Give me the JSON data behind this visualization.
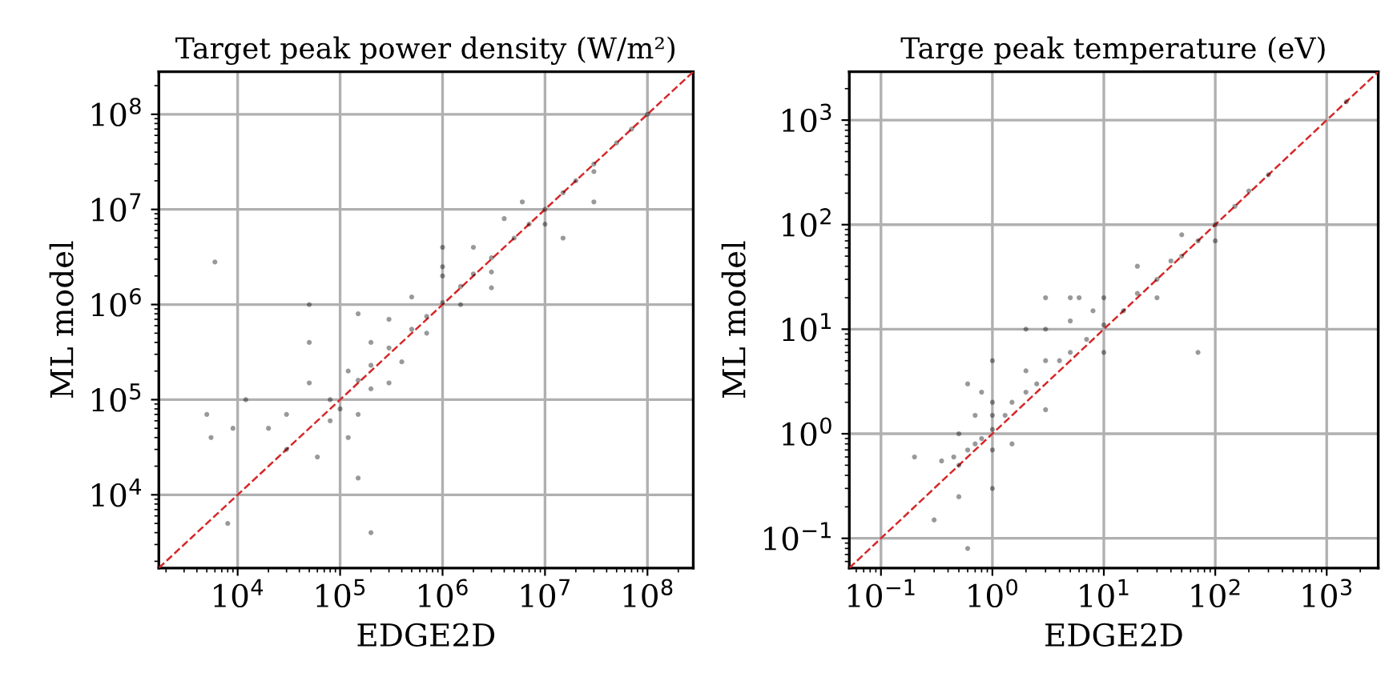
{
  "chart_data": [
    {
      "type": "scatter",
      "title": "Target peak power density (W/m²)",
      "xlabel": "EDGE2D",
      "ylabel": "ML model",
      "log": "xy",
      "grid": true,
      "xlim": [
        1700,
        280000000
      ],
      "ylim": [
        1700,
        280000000
      ],
      "xticks": [
        {
          "value": 10000,
          "label": "10$^{4}$"
        },
        {
          "value": 100000,
          "label": "10$^{5}$"
        },
        {
          "value": 1000000,
          "label": "10$^{6}$"
        },
        {
          "value": 10000000,
          "label": "10$^{7}$"
        },
        {
          "value": 100000000,
          "label": "10$^{8}$"
        }
      ],
      "yticks": [
        {
          "value": 10000,
          "label": "10$^{4}$"
        },
        {
          "value": 100000,
          "label": "10$^{5}$"
        },
        {
          "value": 1000000,
          "label": "10$^{6}$"
        },
        {
          "value": 10000000,
          "label": "10$^{7}$"
        },
        {
          "value": 100000000,
          "label": "10$^{8}$"
        }
      ],
      "series": [
        {
          "marker": "circle",
          "color": "#000000",
          "x": [
            150000,
            200000,
            300000,
            500000,
            700000,
            1000000,
            1500000,
            2000000,
            3000000,
            5000000,
            7000000,
            10000000,
            15000000,
            20000000,
            30000000,
            50000000,
            70000000,
            100000000,
            120000,
            200000,
            300000,
            500000,
            1000000,
            2000000,
            4000000,
            6000000,
            200000,
            400000,
            700000,
            1500000,
            3000000,
            10000000,
            30000000,
            6000,
            5000,
            5500,
            9000,
            12000,
            20000,
            30000,
            50000,
            50000,
            80000,
            80000,
            100000,
            120000,
            150000,
            200000,
            8000,
            30000,
            60000,
            150000,
            300000,
            1000000,
            3000000,
            15000000,
            30000000,
            50000,
            150000,
            1000000
          ],
          "values": [
            160000,
            230000,
            350000,
            550000,
            750000,
            1050000,
            1550000,
            2100000,
            3100000,
            5000000,
            7000000,
            10000000,
            15000000,
            20000000,
            30000000,
            50000000,
            70000000,
            100000000,
            200000,
            400000,
            700000,
            1200000,
            2000000,
            4000000,
            8000000,
            12000000,
            130000,
            250000,
            500000,
            1000000,
            2200000,
            7000000,
            25000000,
            2800000,
            70000,
            40000,
            50000,
            100000,
            50000,
            70000,
            150000,
            400000,
            100000,
            60000,
            80000,
            40000,
            15000,
            4000,
            5000,
            30000,
            25000,
            70000,
            150000,
            4000000,
            1500000,
            5000000,
            12000000,
            1000000,
            800000,
            2500000
          ]
        },
        {
          "type": "line",
          "marker": "none",
          "color": "#d62728",
          "line_style": "dashed",
          "x": [
            1700,
            280000000
          ],
          "values": [
            1700,
            280000000
          ]
        }
      ]
    },
    {
      "type": "scatter",
      "title": "Targe peak temperature (eV)",
      "xlabel": "EDGE2D",
      "ylabel": "ML model",
      "log": "xy",
      "grid": true,
      "xlim": [
        0.052,
        2900
      ],
      "ylim": [
        0.052,
        2900
      ],
      "xticks": [
        {
          "value": 0.1,
          "label": "10$^{−1}$"
        },
        {
          "value": 1,
          "label": "10$^{0}$"
        },
        {
          "value": 10,
          "label": "10$^{1}$"
        },
        {
          "value": 100,
          "label": "10$^{2}$"
        },
        {
          "value": 1000,
          "label": "10$^{3}$"
        }
      ],
      "yticks": [
        {
          "value": 0.1,
          "label": "10$^{−1}$"
        },
        {
          "value": 1,
          "label": "10$^{0}$"
        },
        {
          "value": 10,
          "label": "10$^{1}$"
        },
        {
          "value": 100,
          "label": "10$^{2}$"
        },
        {
          "value": 1000,
          "label": "10$^{3}$"
        }
      ],
      "series": [
        {
          "marker": "circle",
          "color": "#000000",
          "x": [
            0.35,
            0.45,
            0.5,
            0.6,
            0.7,
            0.8,
            1,
            1,
            1,
            1,
            1,
            1,
            1.3,
            1.5,
            2,
            2,
            2.5,
            3,
            3,
            4,
            5,
            5,
            7,
            8,
            10,
            10,
            15,
            20,
            30,
            40,
            50,
            70,
            100,
            150,
            200,
            300,
            1500,
            0.3,
            0.5,
            0.6,
            0.2,
            0.5,
            0.7,
            2,
            3,
            5,
            10,
            20,
            50,
            70,
            0.6,
            1.5,
            3,
            30,
            100,
            0.8,
            6
          ],
          "values": [
            0.55,
            0.6,
            0.5,
            0.7,
            0.8,
            0.9,
            1.1,
            1.5,
            2,
            0.7,
            5,
            0.3,
            1.5,
            2,
            2.5,
            4,
            3,
            5,
            10,
            5,
            6,
            12,
            8,
            15,
            11,
            20,
            15,
            22,
            30,
            45,
            50,
            70,
            100,
            150,
            210,
            300,
            1500,
            0.15,
            0.25,
            0.08,
            0.6,
            1,
            1.5,
            10,
            20,
            20,
            6,
            40,
            80,
            6,
            3,
            0.8,
            1.7,
            20,
            70,
            2.5,
            20
          ]
        },
        {
          "type": "line",
          "marker": "none",
          "color": "#d62728",
          "line_style": "dashed",
          "x": [
            0.052,
            2900
          ],
          "values": [
            0.052,
            2900
          ]
        }
      ]
    }
  ]
}
